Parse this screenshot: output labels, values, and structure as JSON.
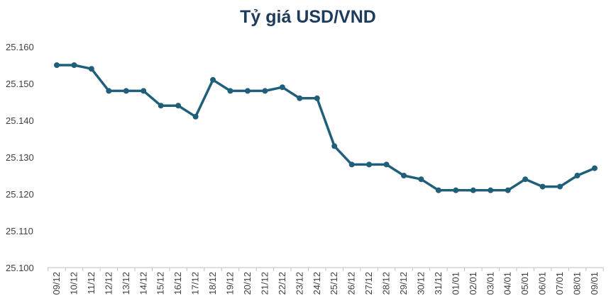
{
  "chart_data": {
    "type": "line",
    "title": "Tỷ giá USD/VND",
    "xlabel": "",
    "ylabel": "",
    "ylim": [
      25100,
      25160
    ],
    "ytick_labels": [
      "25.100",
      "25.110",
      "25.120",
      "25.130",
      "25.140",
      "25.150",
      "25.160"
    ],
    "grid": false,
    "legend": "none",
    "line_color": "#1f5f7a",
    "categories": [
      "09/12",
      "10/12",
      "11/12",
      "12/12",
      "13/12",
      "14/12",
      "15/12",
      "16/12",
      "17/12",
      "18/12",
      "19/12",
      "20/12",
      "21/12",
      "22/12",
      "23/12",
      "24/12",
      "25/12",
      "26/12",
      "27/12",
      "28/12",
      "29/12",
      "30/12",
      "31/12",
      "01/01",
      "02/01",
      "03/01",
      "04/01",
      "05/01",
      "06/01",
      "07/01",
      "08/01",
      "09/01"
    ],
    "series": [
      {
        "values": [
          25155,
          25155,
          25154,
          25148,
          25148,
          25148,
          25144,
          25144,
          25141,
          25151,
          25148,
          25148,
          25148,
          25149,
          25146,
          25146,
          25133,
          25128,
          25128,
          25128,
          25125,
          25124,
          25121,
          25121,
          25121,
          25121,
          25121,
          25124,
          25122,
          25122,
          25125,
          25127
        ]
      }
    ]
  }
}
